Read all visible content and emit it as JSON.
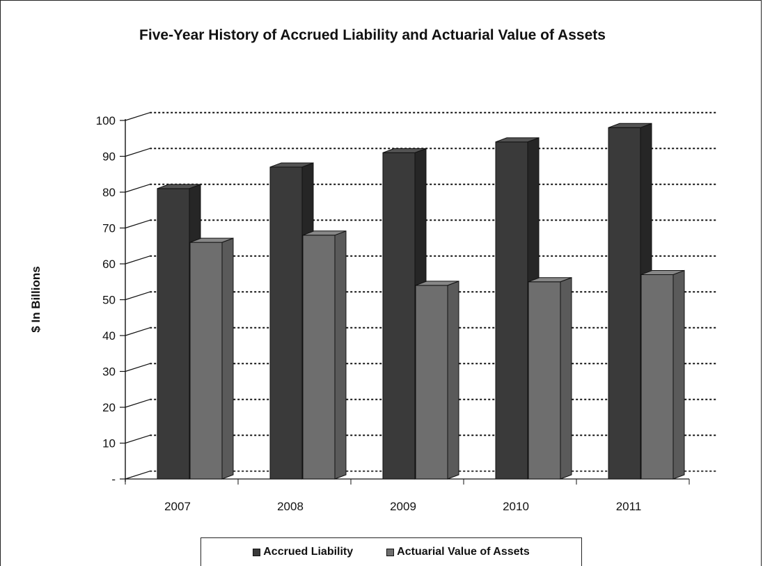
{
  "chart_data": {
    "type": "bar",
    "title": "Five-Year History of Accrued Liability and Actuarial Value of Assets",
    "xlabel": "",
    "ylabel": "$ In Billions",
    "categories": [
      "2007",
      "2008",
      "2009",
      "2010",
      "2011"
    ],
    "series": [
      {
        "name": "Accrued Liability",
        "values": [
          81,
          87,
          91,
          94,
          98
        ],
        "color": "#3a3a3a"
      },
      {
        "name": "Actuarial Value of Assets",
        "values": [
          66,
          68,
          54,
          55,
          57
        ],
        "color": "#6e6e6e"
      }
    ],
    "ylim": [
      0,
      100
    ],
    "yticks": [
      "-",
      "10",
      "20",
      "30",
      "40",
      "50",
      "60",
      "70",
      "80",
      "90",
      "100"
    ],
    "grid": true,
    "legend": "bottom"
  }
}
